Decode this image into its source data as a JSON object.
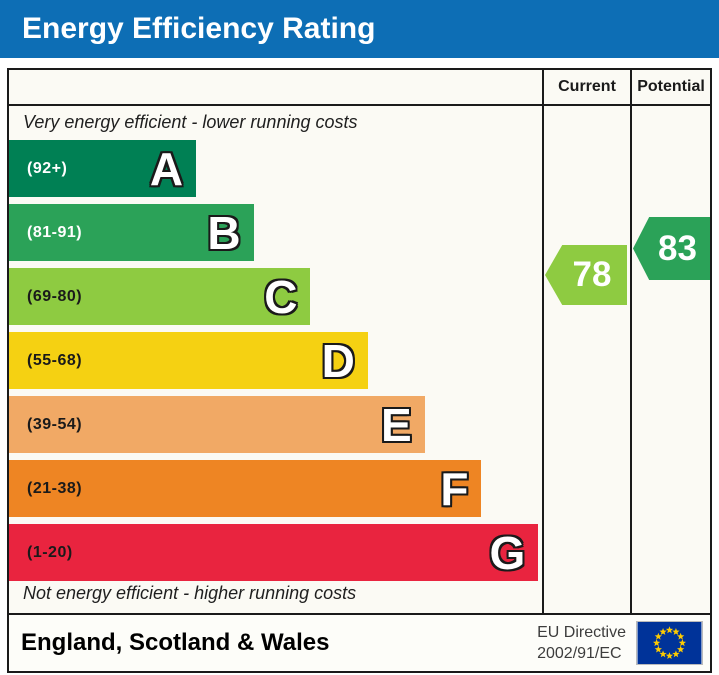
{
  "title": "Energy Efficiency Rating",
  "title_bar_color": "#0d6eb5",
  "columns": {
    "current": "Current",
    "potential": "Potential"
  },
  "captions": {
    "top": "Very energy efficient - lower running costs",
    "bottom": "Not energy efficient - higher running costs"
  },
  "bands": [
    {
      "letter": "A",
      "range": "(92+)",
      "color": "#008054",
      "text_color": "#ffffff",
      "width_pct": 26.7
    },
    {
      "letter": "B",
      "range": "(81-91)",
      "color": "#2ba258",
      "text_color": "#ffffff",
      "width_pct": 34.9
    },
    {
      "letter": "C",
      "range": "(69-80)",
      "color": "#8ecb41",
      "text_color": "#1a1a1a",
      "width_pct": 43.0
    },
    {
      "letter": "D",
      "range": "(55-68)",
      "color": "#f5d112",
      "text_color": "#1a1a1a",
      "width_pct": 51.2
    },
    {
      "letter": "E",
      "range": "(39-54)",
      "color": "#f1a965",
      "text_color": "#1a1a1a",
      "width_pct": 59.3
    },
    {
      "letter": "F",
      "range": "(21-38)",
      "color": "#ee8523",
      "text_color": "#1a1a1a",
      "width_pct": 67.4
    },
    {
      "letter": "G",
      "range": "(1-20)",
      "color": "#e9243f",
      "text_color": "#1a1a1a",
      "width_pct": 75.5
    }
  ],
  "ratings": {
    "current": {
      "value": "78",
      "color": "#8ecb41"
    },
    "potential": {
      "value": "83",
      "color": "#2ba258"
    }
  },
  "footer": {
    "region": "England, Scotland & Wales",
    "directive_line1": "EU Directive",
    "directive_line2": "2002/91/EC"
  },
  "flag_colors": {
    "field": "#003399",
    "stars": "#ffcc00"
  },
  "chart_data": {
    "type": "bar",
    "title": "Energy Efficiency Rating",
    "categories": [
      "A",
      "B",
      "C",
      "D",
      "E",
      "F",
      "G"
    ],
    "band_ranges": [
      "92+",
      "81-91",
      "69-80",
      "55-68",
      "39-54",
      "21-38",
      "1-20"
    ],
    "band_colors": [
      "#008054",
      "#2ba258",
      "#8ecb41",
      "#f5d112",
      "#f1a965",
      "#ee8523",
      "#e9243f"
    ],
    "markers": [
      {
        "name": "Current",
        "value": 78,
        "band": "C",
        "color": "#8ecb41"
      },
      {
        "name": "Potential",
        "value": 83,
        "band": "B",
        "color": "#2ba258"
      }
    ],
    "annotations": [
      "Very energy efficient - lower running costs",
      "Not energy efficient - higher running costs"
    ],
    "region": "England, Scotland & Wales",
    "directive": "EU Directive 2002/91/EC",
    "legend_position": "none",
    "grid": false
  }
}
